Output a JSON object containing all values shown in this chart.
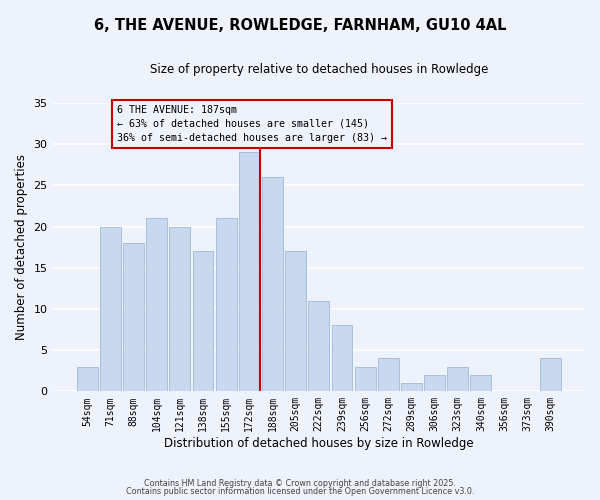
{
  "title": "6, THE AVENUE, ROWLEDGE, FARNHAM, GU10 4AL",
  "subtitle": "Size of property relative to detached houses in Rowledge",
  "xlabel": "Distribution of detached houses by size in Rowledge",
  "ylabel": "Number of detached properties",
  "bar_color": "#c8d8ee",
  "bar_edge_color": "#a8bedd",
  "background_color": "#eef2fb",
  "grid_color": "#ffffff",
  "categories": [
    "54sqm",
    "71sqm",
    "88sqm",
    "104sqm",
    "121sqm",
    "138sqm",
    "155sqm",
    "172sqm",
    "188sqm",
    "205sqm",
    "222sqm",
    "239sqm",
    "256sqm",
    "272sqm",
    "289sqm",
    "306sqm",
    "323sqm",
    "340sqm",
    "356sqm",
    "373sqm",
    "390sqm"
  ],
  "values": [
    3,
    20,
    18,
    21,
    20,
    17,
    21,
    29,
    26,
    17,
    11,
    8,
    3,
    4,
    1,
    2,
    3,
    2,
    0,
    0,
    4
  ],
  "property_label": "6 THE AVENUE: 187sqm",
  "annotation_line1": "← 63% of detached houses are smaller (145)",
  "annotation_line2": "36% of semi-detached houses are larger (83) →",
  "annotation_box_color": "#cc0000",
  "vline_color": "#cc0000",
  "ylim": [
    0,
    35
  ],
  "yticks": [
    0,
    5,
    10,
    15,
    20,
    25,
    30,
    35
  ],
  "footnote1": "Contains HM Land Registry data © Crown copyright and database right 2025.",
  "footnote2": "Contains public sector information licensed under the Open Government Licence v3.0."
}
